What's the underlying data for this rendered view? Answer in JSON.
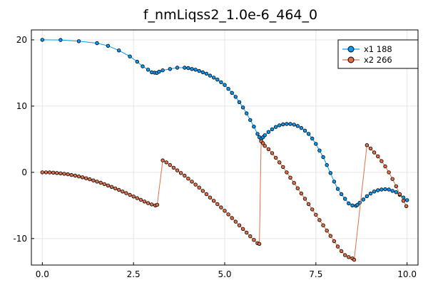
{
  "chart_data": {
    "type": "line",
    "title": "f_nmLiqss2_1.0e-6_464_0",
    "xlabel": "",
    "ylabel": "",
    "xlim": [
      -0.3,
      10.3
    ],
    "ylim": [
      -14,
      21.5
    ],
    "xticks": [
      0.0,
      2.5,
      5.0,
      7.5,
      10.0
    ],
    "xtick_labels": [
      "0.0",
      "2.5",
      "5.0",
      "7.5",
      "10.0"
    ],
    "yticks": [
      -10,
      0,
      10,
      20
    ],
    "ytick_labels": [
      "-10",
      "0",
      "10",
      "20"
    ],
    "grid": true,
    "legend_position": "top-right",
    "colors": {
      "x1": "#009af9",
      "x2": "#e26f46",
      "marker_edge": "#000000"
    },
    "series": [
      {
        "name": "x1 188",
        "x": [
          0.0,
          0.5,
          1.0,
          1.5,
          1.8,
          2.1,
          2.4,
          2.6,
          2.75,
          2.9,
          3.0,
          3.08,
          3.14,
          3.2,
          3.3,
          3.5,
          3.7,
          3.9,
          4.0,
          4.1,
          4.2,
          4.3,
          4.4,
          4.5,
          4.6,
          4.7,
          4.8,
          4.9,
          5.0,
          5.1,
          5.2,
          5.3,
          5.4,
          5.5,
          5.6,
          5.7,
          5.8,
          5.9,
          5.95,
          6.0,
          6.05,
          6.1,
          6.2,
          6.3,
          6.4,
          6.5,
          6.6,
          6.7,
          6.8,
          6.9,
          7.0,
          7.1,
          7.2,
          7.3,
          7.4,
          7.5,
          7.6,
          7.7,
          7.8,
          7.9,
          8.0,
          8.1,
          8.2,
          8.3,
          8.4,
          8.5,
          8.6,
          8.64,
          8.7,
          8.8,
          8.9,
          9.0,
          9.1,
          9.2,
          9.3,
          9.4,
          9.5,
          9.6,
          9.7,
          9.8,
          9.9,
          10.0
        ],
        "y": [
          20.0,
          19.98,
          19.8,
          19.5,
          19.1,
          18.4,
          17.5,
          16.7,
          16.0,
          15.5,
          15.1,
          15.05,
          15.0,
          15.2,
          15.4,
          15.6,
          15.8,
          15.8,
          15.75,
          15.6,
          15.5,
          15.3,
          15.1,
          14.9,
          14.6,
          14.3,
          14.0,
          13.6,
          13.2,
          12.6,
          12.0,
          11.4,
          10.6,
          9.8,
          8.9,
          7.9,
          6.9,
          5.8,
          5.3,
          5.0,
          5.3,
          5.6,
          6.1,
          6.5,
          6.85,
          7.1,
          7.25,
          7.3,
          7.3,
          7.2,
          7.0,
          6.7,
          6.3,
          5.8,
          5.1,
          4.3,
          3.3,
          2.3,
          1.1,
          -0.1,
          -1.4,
          -2.5,
          -3.3,
          -4.0,
          -4.7,
          -5.0,
          -5.05,
          -4.9,
          -4.6,
          -4.1,
          -3.6,
          -3.2,
          -2.9,
          -2.7,
          -2.6,
          -2.55,
          -2.6,
          -2.8,
          -3.0,
          -3.4,
          -3.8,
          -4.2
        ]
      },
      {
        "name": "x2 266",
        "x": [
          0.0,
          0.1,
          0.2,
          0.3,
          0.4,
          0.5,
          0.6,
          0.7,
          0.8,
          0.9,
          1.0,
          1.1,
          1.2,
          1.3,
          1.4,
          1.5,
          1.6,
          1.7,
          1.8,
          1.9,
          2.0,
          2.1,
          2.2,
          2.3,
          2.4,
          2.5,
          2.6,
          2.7,
          2.8,
          2.9,
          3.0,
          3.1,
          3.15,
          3.3,
          3.4,
          3.5,
          3.6,
          3.7,
          3.8,
          3.9,
          4.0,
          4.1,
          4.2,
          4.3,
          4.4,
          4.5,
          4.6,
          4.7,
          4.8,
          4.9,
          5.0,
          5.1,
          5.2,
          5.3,
          5.4,
          5.5,
          5.6,
          5.7,
          5.8,
          5.9,
          5.95,
          6.0,
          6.05,
          6.1,
          6.2,
          6.3,
          6.4,
          6.5,
          6.6,
          6.7,
          6.8,
          6.9,
          7.0,
          7.1,
          7.2,
          7.3,
          7.4,
          7.5,
          7.6,
          7.7,
          7.8,
          7.9,
          8.0,
          8.1,
          8.2,
          8.3,
          8.4,
          8.5,
          8.55,
          8.9,
          9.0,
          9.1,
          9.2,
          9.3,
          9.4,
          9.5,
          9.6,
          9.7,
          9.8,
          9.9,
          9.98
        ],
        "y": [
          0.0,
          0.0,
          -0.02,
          -0.05,
          -0.1,
          -0.15,
          -0.22,
          -0.3,
          -0.4,
          -0.5,
          -0.62,
          -0.75,
          -0.9,
          -1.05,
          -1.22,
          -1.4,
          -1.58,
          -1.78,
          -1.98,
          -2.2,
          -2.42,
          -2.65,
          -2.9,
          -3.15,
          -3.4,
          -3.65,
          -3.9,
          -4.15,
          -4.4,
          -4.65,
          -4.85,
          -5.0,
          -4.9,
          1.8,
          1.5,
          1.1,
          0.7,
          0.3,
          -0.1,
          -0.5,
          -0.95,
          -1.4,
          -1.85,
          -2.3,
          -2.8,
          -3.3,
          -3.8,
          -4.3,
          -4.8,
          -5.3,
          -5.8,
          -6.35,
          -6.9,
          -7.45,
          -8.0,
          -8.55,
          -9.1,
          -9.65,
          -10.2,
          -10.7,
          -10.8,
          4.7,
          4.4,
          4.0,
          3.5,
          2.9,
          2.2,
          1.5,
          0.8,
          0.0,
          -0.8,
          -1.6,
          -2.4,
          -3.2,
          -4.0,
          -4.8,
          -5.6,
          -6.4,
          -7.2,
          -8.0,
          -8.8,
          -9.6,
          -10.4,
          -11.2,
          -11.9,
          -12.5,
          -12.8,
          -13.0,
          -13.2,
          4.1,
          3.6,
          3.0,
          2.4,
          1.7,
          0.9,
          0.0,
          -1.0,
          -2.1,
          -3.3,
          -4.3,
          -5.1
        ]
      }
    ]
  }
}
